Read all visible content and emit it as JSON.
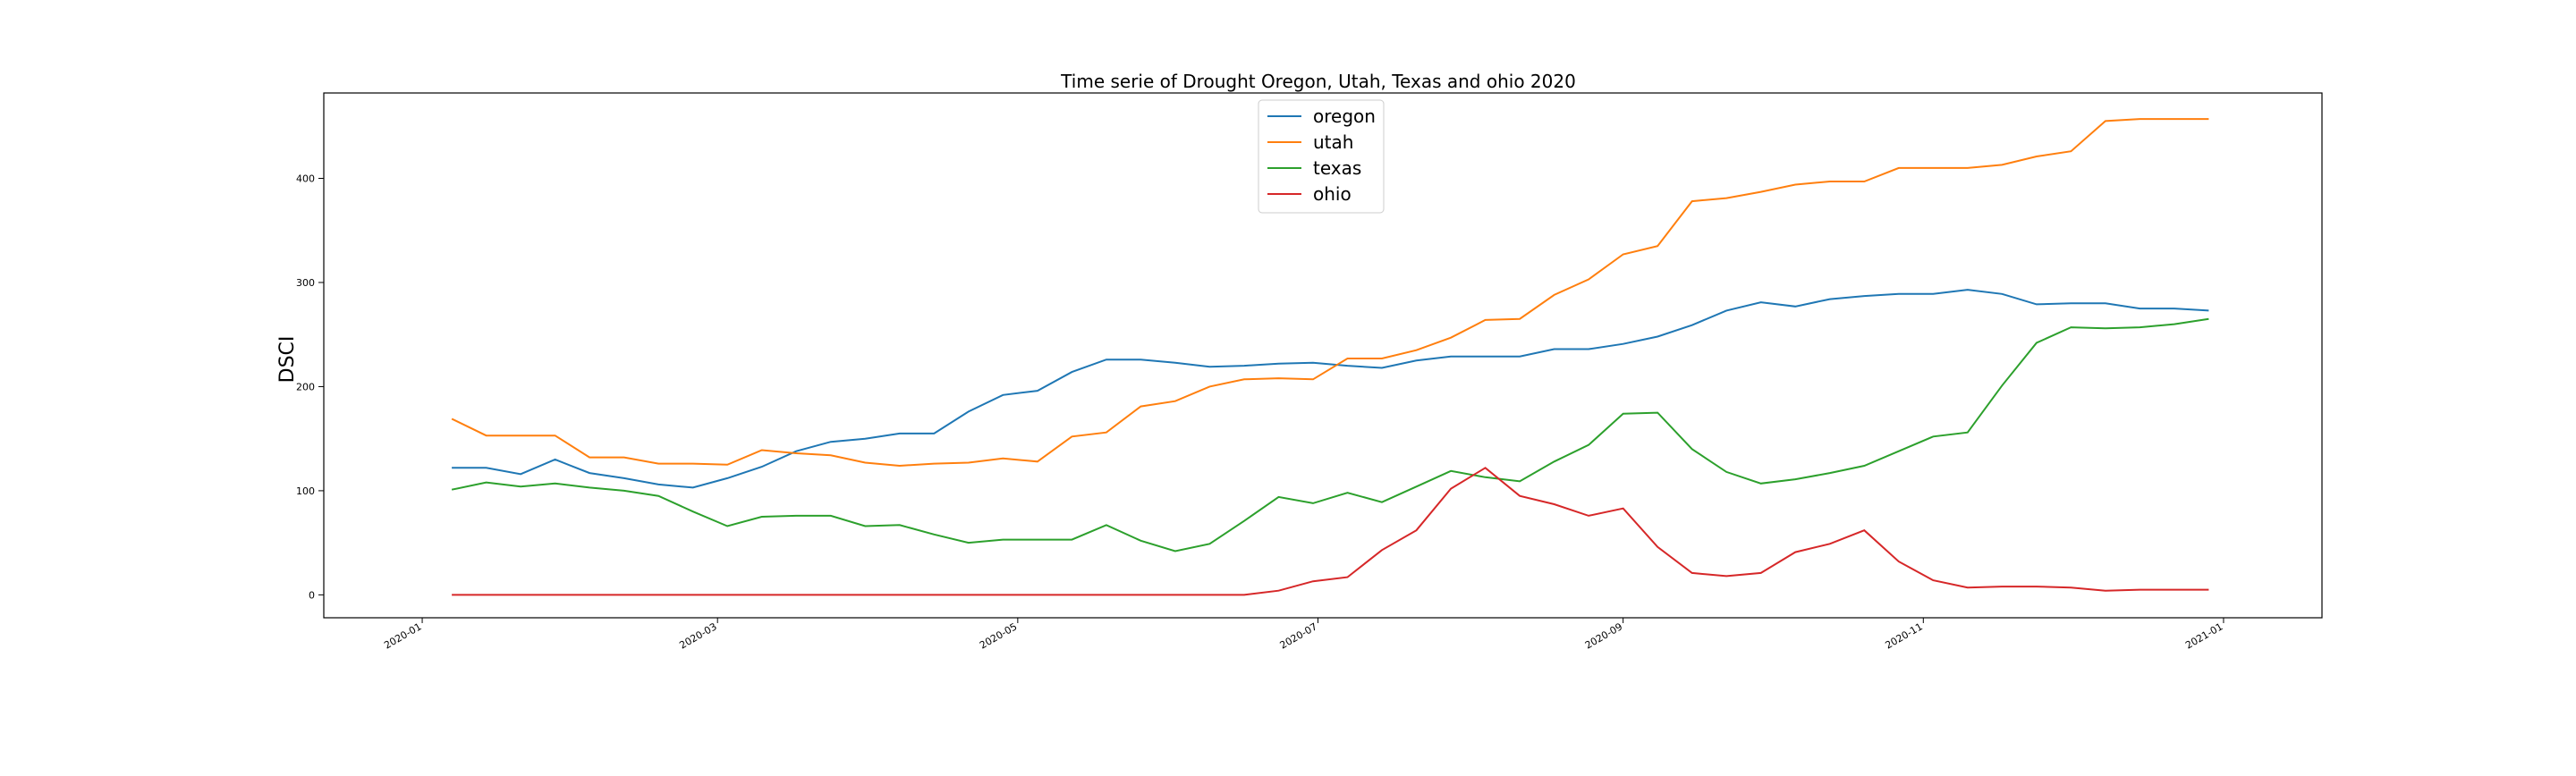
{
  "chart_data": {
    "type": "line",
    "title": "Time serie of Drought Oregon, Utah, Texas and ohio 2020",
    "xlabel": "",
    "ylabel": "DSCI",
    "x_axis_type": "date",
    "xlim": [
      "2019-12-12",
      "2021-01-21"
    ],
    "ylim": [
      -22,
      482
    ],
    "x_ticks": [
      "2020-01",
      "2020-03",
      "2020-05",
      "2020-07",
      "2020-09",
      "2020-11",
      "2021-01"
    ],
    "y_ticks": [
      0,
      100,
      200,
      300,
      400
    ],
    "grid": false,
    "legend": "upper-center",
    "x": [
      "2020-01-07",
      "2020-01-14",
      "2020-01-21",
      "2020-01-28",
      "2020-02-04",
      "2020-02-11",
      "2020-02-18",
      "2020-02-25",
      "2020-03-03",
      "2020-03-10",
      "2020-03-17",
      "2020-03-24",
      "2020-03-31",
      "2020-04-07",
      "2020-04-14",
      "2020-04-21",
      "2020-04-28",
      "2020-05-05",
      "2020-05-12",
      "2020-05-19",
      "2020-05-26",
      "2020-06-02",
      "2020-06-09",
      "2020-06-16",
      "2020-06-23",
      "2020-06-30",
      "2020-07-07",
      "2020-07-14",
      "2020-07-21",
      "2020-07-28",
      "2020-08-04",
      "2020-08-11",
      "2020-08-18",
      "2020-08-25",
      "2020-09-01",
      "2020-09-08",
      "2020-09-15",
      "2020-09-22",
      "2020-09-29",
      "2020-10-06",
      "2020-10-13",
      "2020-10-20",
      "2020-10-27",
      "2020-11-03",
      "2020-11-10",
      "2020-11-17",
      "2020-11-24",
      "2020-12-01",
      "2020-12-08",
      "2020-12-15",
      "2020-12-22",
      "2020-12-29"
    ],
    "series": [
      {
        "name": "oregon",
        "color": "#1f77b4",
        "values": [
          122,
          122,
          116,
          130,
          117,
          112,
          106,
          103,
          112,
          123,
          138,
          147,
          150,
          155,
          155,
          176,
          192,
          196,
          214,
          226,
          226,
          223,
          219,
          220,
          222,
          223,
          220,
          218,
          225,
          229,
          229,
          229,
          236,
          236,
          241,
          248,
          259,
          273,
          281,
          277,
          284,
          287,
          289,
          289,
          293,
          289,
          279,
          280,
          280,
          275,
          275,
          273
        ]
      },
      {
        "name": "utah",
        "color": "#ff7f0e",
        "values": [
          169,
          153,
          153,
          153,
          132,
          132,
          126,
          126,
          125,
          139,
          136,
          134,
          127,
          124,
          126,
          127,
          131,
          128,
          152,
          156,
          181,
          186,
          200,
          207,
          208,
          207,
          227,
          227,
          235,
          247,
          264,
          265,
          288,
          303,
          327,
          335,
          378,
          381,
          387,
          394,
          397,
          397,
          410,
          410,
          410,
          413,
          421,
          426,
          455,
          457,
          457,
          457
        ]
      },
      {
        "name": "texas",
        "color": "#2ca02c",
        "values": [
          101,
          108,
          104,
          107,
          103,
          100,
          95,
          80,
          66,
          75,
          76,
          76,
          66,
          67,
          58,
          50,
          53,
          53,
          53,
          67,
          52,
          42,
          49,
          71,
          94,
          88,
          98,
          89,
          104,
          119,
          113,
          109,
          128,
          144,
          174,
          175,
          140,
          118,
          107,
          111,
          117,
          124,
          138,
          152,
          156,
          201,
          242,
          257,
          256,
          257,
          260,
          265
        ]
      },
      {
        "name": "ohio",
        "color": "#d62728",
        "values": [
          0,
          0,
          0,
          0,
          0,
          0,
          0,
          0,
          0,
          0,
          0,
          0,
          0,
          0,
          0,
          0,
          0,
          0,
          0,
          0,
          0,
          0,
          0,
          0,
          4,
          13,
          17,
          43,
          62,
          102,
          122,
          95,
          87,
          76,
          83,
          46,
          21,
          18,
          21,
          41,
          49,
          62,
          32,
          14,
          7,
          8,
          8,
          7,
          4,
          5,
          5,
          5
        ]
      }
    ]
  }
}
